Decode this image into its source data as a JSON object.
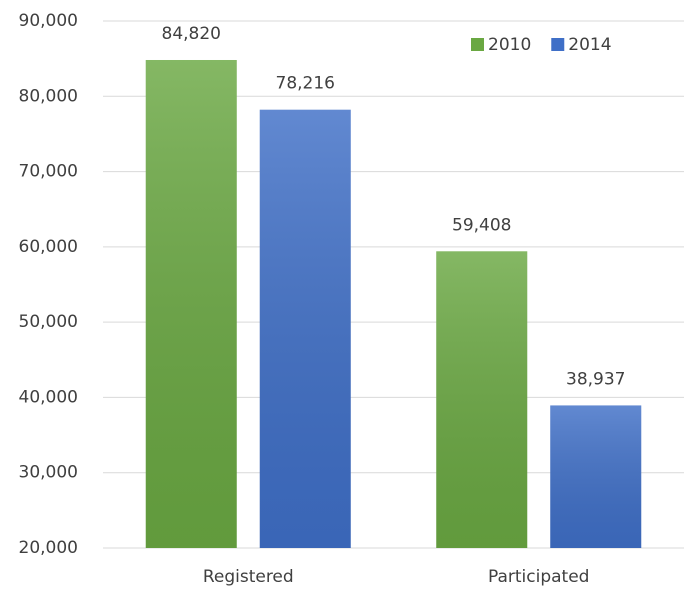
{
  "chart_data": {
    "type": "bar",
    "categories": [
      "Registered",
      "Participated"
    ],
    "series": [
      {
        "name": "2010",
        "color": "#6aa842",
        "values": [
          84820,
          59408
        ],
        "value_labels": [
          "84,820",
          "59,408"
        ]
      },
      {
        "name": "2014",
        "color": "#3f6fc7",
        "values": [
          78216,
          38937
        ],
        "value_labels": [
          "78,216",
          "38,937"
        ]
      }
    ],
    "ylim": [
      20000,
      90000
    ],
    "yticks": [
      {
        "value": 20000,
        "label": "20,000"
      },
      {
        "value": 30000,
        "label": "30,000"
      },
      {
        "value": 40000,
        "label": "40,000"
      },
      {
        "value": 50000,
        "label": "50,000"
      },
      {
        "value": 60000,
        "label": "60,000"
      },
      {
        "value": 70000,
        "label": "70,000"
      },
      {
        "value": 80000,
        "label": "80,000"
      },
      {
        "value": 90000,
        "label": "90,000"
      }
    ],
    "grid": true,
    "legend": "top-right"
  }
}
